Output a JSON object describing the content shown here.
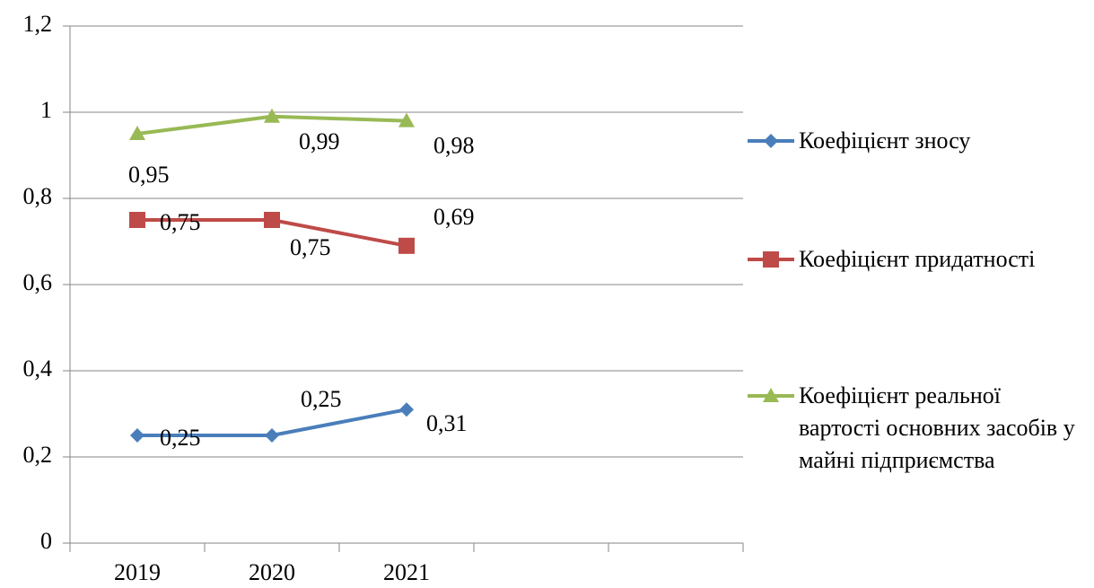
{
  "chart_data": {
    "type": "line",
    "categories": [
      "2019",
      "2020",
      "2021",
      null,
      null
    ],
    "series": [
      {
        "name": "Коефіцієнт зносу",
        "color": "#4a7ebb",
        "marker": "diamond",
        "values": [
          0.25,
          0.25,
          0.31,
          null,
          null
        ],
        "value_labels": [
          "0,25",
          "0,25",
          "0,31",
          null,
          null
        ]
      },
      {
        "name": "Коефіцієнт придатності",
        "color": "#be4b48",
        "marker": "square",
        "values": [
          0.75,
          0.75,
          0.69,
          null,
          null
        ],
        "value_labels": [
          "0,75",
          "0,75",
          "0,69",
          null,
          null
        ]
      },
      {
        "name": "Коефіцієнт реальної вартості основних засобів у майні підприємства",
        "color": "#98b954",
        "marker": "triangle",
        "values": [
          0.95,
          0.99,
          0.98,
          null,
          null
        ],
        "value_labels": [
          "0,95",
          "0,99",
          "0,98",
          null,
          null
        ]
      }
    ],
    "ylim": [
      0,
      1.2
    ],
    "yticks": [
      0,
      {
        "value": 0.2,
        "label": "0,2"
      },
      {
        "value": 0.4,
        "label": "0,4"
      },
      {
        "value": 0.6,
        "label": "0,6"
      },
      {
        "value": 0.8,
        "label": "0,8"
      },
      1,
      {
        "value": 1.2,
        "label": "1,2"
      }
    ],
    "grid": true,
    "legend": "right"
  }
}
